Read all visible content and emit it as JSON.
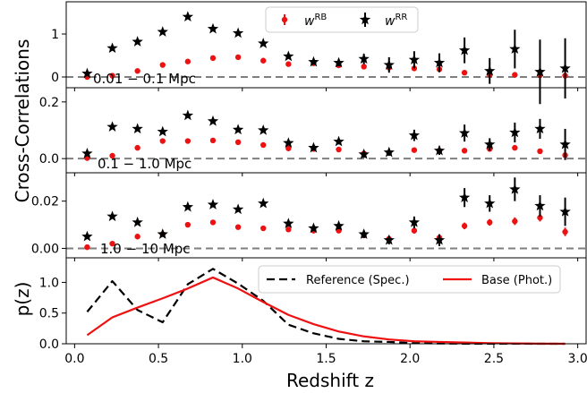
{
  "figure": {
    "ylabel_top": "Cross-Correlations",
    "xlabel": "Redshift z",
    "ylabel_bottom": "p(z)"
  },
  "chart_data": [
    {
      "type": "scatter",
      "panel_label": "0.01 − 0.1 Mpc",
      "ylim": [
        -0.25,
        1.75
      ],
      "yticks": [
        0,
        1
      ],
      "ytick_labels": [
        "0",
        "1"
      ],
      "legend": {
        "placement": "top-center",
        "entries": [
          "w^RB",
          "w^RR"
        ]
      },
      "x": [
        0.075,
        0.225,
        0.375,
        0.525,
        0.675,
        0.825,
        0.975,
        1.125,
        1.275,
        1.425,
        1.575,
        1.725,
        1.875,
        2.025,
        2.175,
        2.325,
        2.475,
        2.625,
        2.775,
        2.925
      ],
      "series": [
        {
          "name": "w^RB",
          "color": "#ee1111",
          "marker": "dot",
          "values": [
            0.0,
            0.03,
            0.14,
            0.28,
            0.36,
            0.44,
            0.46,
            0.38,
            0.3,
            0.32,
            0.27,
            0.24,
            0.22,
            0.2,
            0.18,
            0.1,
            0.05,
            0.05,
            0.04,
            0.03
          ],
          "errors": [
            0.02,
            0.02,
            0.02,
            0.02,
            0.02,
            0.02,
            0.02,
            0.02,
            0.03,
            0.03,
            0.03,
            0.04,
            0.04,
            0.05,
            0.05,
            0.05,
            0.05,
            0.05,
            0.05,
            0.05
          ]
        },
        {
          "name": "w^RR",
          "color": "#000000",
          "marker": "star",
          "values": [
            0.08,
            0.67,
            0.82,
            1.05,
            1.4,
            1.12,
            1.02,
            0.78,
            0.48,
            0.35,
            0.33,
            0.42,
            0.28,
            0.4,
            0.33,
            0.62,
            0.14,
            0.65,
            0.12,
            0.2
          ],
          "errors": [
            0.03,
            0.03,
            0.03,
            0.04,
            0.04,
            0.04,
            0.04,
            0.06,
            0.06,
            0.06,
            0.08,
            0.12,
            0.18,
            0.2,
            0.22,
            0.3,
            0.3,
            0.45,
            0.75,
            0.7
          ]
        }
      ]
    },
    {
      "type": "scatter",
      "panel_label": "0.1 − 1.0 Mpc",
      "ylim": [
        -0.05,
        0.25
      ],
      "yticks": [
        0,
        0.2
      ],
      "ytick_labels": [
        "0.0",
        "0.2"
      ],
      "x": [
        0.075,
        0.225,
        0.375,
        0.525,
        0.675,
        0.825,
        0.975,
        1.125,
        1.275,
        1.425,
        1.575,
        1.725,
        1.875,
        2.025,
        2.175,
        2.325,
        2.475,
        2.625,
        2.775,
        2.925
      ],
      "series": [
        {
          "name": "w^RB",
          "color": "#ee1111",
          "marker": "dot",
          "values": [
            0.002,
            0.01,
            0.038,
            0.062,
            0.062,
            0.064,
            0.058,
            0.048,
            0.036,
            0.034,
            0.032,
            0.018,
            0.02,
            0.03,
            0.028,
            0.028,
            0.034,
            0.038,
            0.026,
            0.012
          ],
          "errors": [
            0.004,
            0.004,
            0.004,
            0.004,
            0.004,
            0.004,
            0.004,
            0.004,
            0.004,
            0.004,
            0.004,
            0.004,
            0.004,
            0.004,
            0.004,
            0.005,
            0.005,
            0.006,
            0.006,
            0.006
          ]
        },
        {
          "name": "w^RR",
          "color": "#000000",
          "marker": "star",
          "values": [
            0.018,
            0.112,
            0.105,
            0.095,
            0.152,
            0.132,
            0.102,
            0.1,
            0.055,
            0.038,
            0.06,
            0.015,
            0.022,
            0.082,
            0.028,
            0.09,
            0.05,
            0.092,
            0.105,
            0.05
          ],
          "errors": [
            0.004,
            0.006,
            0.006,
            0.006,
            0.006,
            0.006,
            0.006,
            0.006,
            0.008,
            0.008,
            0.01,
            0.012,
            0.012,
            0.02,
            0.015,
            0.03,
            0.022,
            0.035,
            0.035,
            0.055
          ]
        }
      ]
    },
    {
      "type": "scatter",
      "panel_label": "1.0 − 10 Mpc",
      "ylim": [
        -0.004,
        0.032
      ],
      "yticks": [
        0,
        0.02
      ],
      "ytick_labels": [
        "0.00",
        "0.02"
      ],
      "x": [
        0.075,
        0.225,
        0.375,
        0.525,
        0.675,
        0.825,
        0.975,
        1.125,
        1.275,
        1.425,
        1.575,
        1.725,
        1.875,
        2.025,
        2.175,
        2.325,
        2.475,
        2.625,
        2.775,
        2.925
      ],
      "series": [
        {
          "name": "w^RB",
          "color": "#ee1111",
          "marker": "dot",
          "values": [
            0.0005,
            0.002,
            0.005,
            0.006,
            0.01,
            0.011,
            0.009,
            0.0085,
            0.008,
            0.0075,
            0.0075,
            0.0055,
            0.004,
            0.0075,
            0.0045,
            0.0095,
            0.011,
            0.0115,
            0.013,
            0.007
          ],
          "errors": [
            0.0004,
            0.0004,
            0.0005,
            0.0005,
            0.0006,
            0.0006,
            0.0006,
            0.0006,
            0.0008,
            0.0008,
            0.0008,
            0.0008,
            0.001,
            0.0012,
            0.0012,
            0.0014,
            0.0014,
            0.0016,
            0.0016,
            0.0018
          ]
        },
        {
          "name": "w^RR",
          "color": "#000000",
          "marker": "star",
          "values": [
            0.005,
            0.0135,
            0.011,
            0.006,
            0.0175,
            0.0185,
            0.0165,
            0.019,
            0.0105,
            0.0085,
            0.0095,
            0.006,
            0.0035,
            0.011,
            0.0035,
            0.0215,
            0.019,
            0.025,
            0.018,
            0.0155
          ],
          "errors": [
            0.0006,
            0.0008,
            0.0008,
            0.0008,
            0.001,
            0.001,
            0.001,
            0.001,
            0.0012,
            0.0012,
            0.0014,
            0.0016,
            0.0018,
            0.0025,
            0.0025,
            0.004,
            0.0035,
            0.005,
            0.0045,
            0.006
          ]
        }
      ]
    },
    {
      "type": "line",
      "ylim": [
        0,
        1.4
      ],
      "yticks": [
        0,
        0.5,
        1.0
      ],
      "ytick_labels": [
        "0.0",
        "0.5",
        "1.0"
      ],
      "xlim": [
        -0.05,
        3.05
      ],
      "xticks": [
        0,
        0.5,
        1.0,
        1.5,
        2.0,
        2.5,
        3.0
      ],
      "xtick_labels": [
        "0.0",
        "0.5",
        "1.0",
        "1.5",
        "2.0",
        "2.5",
        "3.0"
      ],
      "legend": {
        "placement": "top-right"
      },
      "series": [
        {
          "name": "Reference (Spec.)",
          "color": "#000000",
          "style": "dashed",
          "x": [
            0.075,
            0.225,
            0.375,
            0.525,
            0.675,
            0.825,
            0.975,
            1.125,
            1.275,
            1.425,
            1.575,
            1.725,
            1.875,
            2.025,
            2.175,
            2.325,
            2.475,
            2.625,
            2.775,
            2.925
          ],
          "values": [
            0.52,
            1.02,
            0.55,
            0.35,
            0.97,
            1.22,
            0.98,
            0.7,
            0.31,
            0.17,
            0.08,
            0.04,
            0.03,
            0.01,
            0.005,
            0.002,
            0.001,
            0.001,
            0.0,
            0.0
          ]
        },
        {
          "name": "Base (Phot.)",
          "color": "#ee1111",
          "style": "solid",
          "x": [
            0.075,
            0.225,
            0.375,
            0.525,
            0.675,
            0.825,
            0.975,
            1.125,
            1.275,
            1.425,
            1.575,
            1.725,
            1.875,
            2.025,
            2.175,
            2.325,
            2.475,
            2.625,
            2.775,
            2.925
          ],
          "values": [
            0.14,
            0.43,
            0.59,
            0.74,
            0.9,
            1.08,
            0.9,
            0.68,
            0.47,
            0.32,
            0.2,
            0.12,
            0.07,
            0.04,
            0.03,
            0.02,
            0.01,
            0.005,
            0.002,
            0.0
          ]
        }
      ]
    }
  ]
}
